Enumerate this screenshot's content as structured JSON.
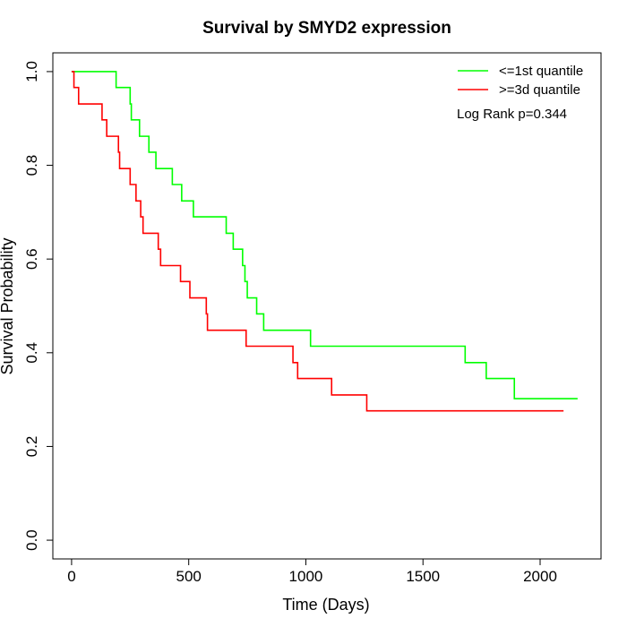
{
  "chart_data": {
    "type": "line",
    "title": "Survival by SMYD2 expression",
    "xlabel": "Time (Days)",
    "ylabel": "Survival Probability",
    "xlim": [
      -80,
      2260
    ],
    "ylim": [
      -0.04,
      1.04
    ],
    "xticks": [
      0,
      500,
      1000,
      1500,
      2000
    ],
    "xtick_labels": [
      "0",
      "500",
      "1000",
      "1500",
      "2000"
    ],
    "yticks": [
      0.0,
      0.2,
      0.4,
      0.6,
      0.8,
      1.0
    ],
    "ytick_labels": [
      "0.0",
      "0.2",
      "0.4",
      "0.6",
      "0.8",
      "1.0"
    ],
    "grid": false,
    "legend_position": "top-right",
    "annotation": "Log Rank p=0.344",
    "series": [
      {
        "name": "<=1st quantile",
        "color": "#00ff00",
        "step_points": [
          [
            0,
            1.0
          ],
          [
            190,
            0.966
          ],
          [
            250,
            0.931
          ],
          [
            255,
            0.897
          ],
          [
            290,
            0.862
          ],
          [
            330,
            0.828
          ],
          [
            360,
            0.793
          ],
          [
            430,
            0.759
          ],
          [
            470,
            0.724
          ],
          [
            520,
            0.69
          ],
          [
            660,
            0.655
          ],
          [
            690,
            0.621
          ],
          [
            730,
            0.586
          ],
          [
            740,
            0.552
          ],
          [
            750,
            0.517
          ],
          [
            790,
            0.483
          ],
          [
            820,
            0.448
          ],
          [
            1020,
            0.414
          ],
          [
            1680,
            0.379
          ],
          [
            1770,
            0.345
          ],
          [
            1890,
            0.302
          ],
          [
            2160,
            0.302
          ]
        ]
      },
      {
        "name": ">=3d quantile",
        "color": "#ff0000",
        "step_points": [
          [
            0,
            1.0
          ],
          [
            10,
            0.966
          ],
          [
            30,
            0.931
          ],
          [
            130,
            0.897
          ],
          [
            150,
            0.862
          ],
          [
            200,
            0.828
          ],
          [
            205,
            0.793
          ],
          [
            250,
            0.759
          ],
          [
            275,
            0.724
          ],
          [
            295,
            0.69
          ],
          [
            305,
            0.655
          ],
          [
            370,
            0.621
          ],
          [
            380,
            0.586
          ],
          [
            465,
            0.552
          ],
          [
            505,
            0.517
          ],
          [
            575,
            0.483
          ],
          [
            580,
            0.448
          ],
          [
            745,
            0.414
          ],
          [
            945,
            0.379
          ],
          [
            965,
            0.345
          ],
          [
            1110,
            0.31
          ],
          [
            1260,
            0.276
          ],
          [
            2100,
            0.276
          ]
        ]
      }
    ]
  }
}
